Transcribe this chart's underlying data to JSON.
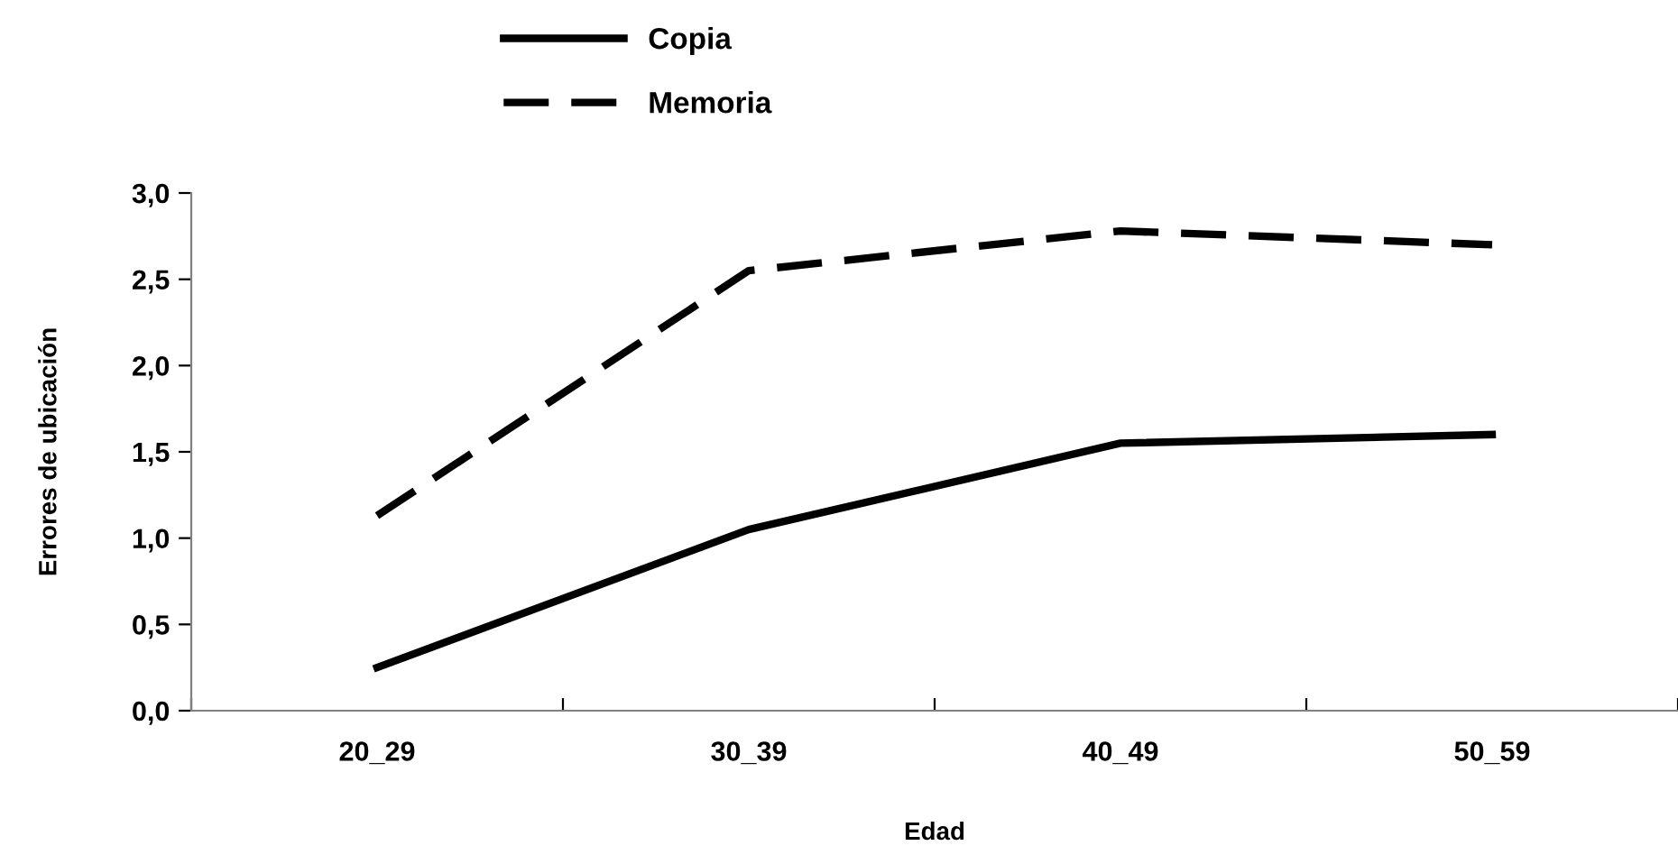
{
  "chart_data": {
    "type": "line",
    "xlabel": "Edad",
    "ylabel": "Errores de ubicación",
    "categories": [
      "20_29",
      "30_39",
      "40_49",
      "50_59"
    ],
    "series": [
      {
        "name": "Copia",
        "color": "#000000",
        "line_style": "solid",
        "values": [
          0.25,
          1.05,
          1.55,
          1.6
        ]
      },
      {
        "name": "Memoria",
        "color": "#000000",
        "line_style": "dashed",
        "values": [
          1.13,
          2.55,
          2.78,
          2.7
        ]
      }
    ],
    "ylim": [
      0,
      3
    ],
    "yticks": [
      {
        "value": 0,
        "label": "0,0"
      },
      {
        "value": 0.5,
        "label": "0,5"
      },
      {
        "value": 1,
        "label": "1,0"
      },
      {
        "value": 1.5,
        "label": "1,5"
      },
      {
        "value": 2,
        "label": "2,0"
      },
      {
        "value": 2.5,
        "label": "2,5"
      },
      {
        "value": 3,
        "label": "3,0"
      }
    ],
    "grid": false,
    "legend": "top",
    "marker": "none"
  }
}
